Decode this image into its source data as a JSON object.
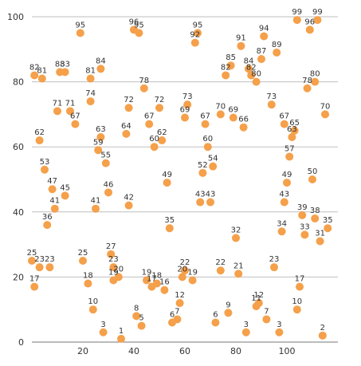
{
  "chart_data": {
    "type": "scatter",
    "title": "",
    "xlabel": "",
    "ylabel": "",
    "xlim": [
      0,
      120
    ],
    "ylim": [
      0,
      100
    ],
    "x_ticks": [
      20,
      40,
      60,
      80,
      100
    ],
    "y_ticks": [
      0,
      20,
      40,
      60,
      80,
      100
    ],
    "grid": {
      "horizontal": true,
      "vertical": false
    },
    "legend": "none",
    "marker_color": "#f5a04a",
    "points": [
      {
        "x": 1,
        "y": 17,
        "label": "17"
      },
      {
        "x": 0,
        "y": 25,
        "label": "25"
      },
      {
        "x": 3,
        "y": 23,
        "label": "23"
      },
      {
        "x": 7,
        "y": 23,
        "label": "23"
      },
      {
        "x": 1,
        "y": 82,
        "label": "82"
      },
      {
        "x": 4,
        "y": 81,
        "label": "81"
      },
      {
        "x": 3,
        "y": 62,
        "label": "62"
      },
      {
        "x": 5,
        "y": 53,
        "label": "53"
      },
      {
        "x": 8,
        "y": 47,
        "label": "47"
      },
      {
        "x": 9,
        "y": 41,
        "label": "41"
      },
      {
        "x": 6,
        "y": 36,
        "label": "36"
      },
      {
        "x": 13,
        "y": 45,
        "label": "45"
      },
      {
        "x": 10,
        "y": 71,
        "label": "71"
      },
      {
        "x": 11,
        "y": 83,
        "label": "83"
      },
      {
        "x": 13,
        "y": 83,
        "label": "83"
      },
      {
        "x": 15,
        "y": 71,
        "label": "71"
      },
      {
        "x": 17,
        "y": 67,
        "label": "67"
      },
      {
        "x": 19,
        "y": 95,
        "label": "95"
      },
      {
        "x": 20,
        "y": 25,
        "label": "25"
      },
      {
        "x": 22,
        "y": 18,
        "label": "18"
      },
      {
        "x": 23,
        "y": 81,
        "label": "81"
      },
      {
        "x": 23,
        "y": 74,
        "label": "74"
      },
      {
        "x": 24,
        "y": 10,
        "label": "10"
      },
      {
        "x": 26,
        "y": 59,
        "label": "59"
      },
      {
        "x": 27,
        "y": 84,
        "label": "84"
      },
      {
        "x": 27,
        "y": 63,
        "label": "63"
      },
      {
        "x": 25,
        "y": 41,
        "label": "41"
      },
      {
        "x": 28,
        "y": 3,
        "label": "3"
      },
      {
        "x": 29,
        "y": 55,
        "label": "55"
      },
      {
        "x": 30,
        "y": 46,
        "label": "46"
      },
      {
        "x": 31,
        "y": 27,
        "label": "27"
      },
      {
        "x": 32,
        "y": 19,
        "label": "19"
      },
      {
        "x": 32,
        "y": 23,
        "label": "23"
      },
      {
        "x": 34,
        "y": 20,
        "label": "20"
      },
      {
        "x": 35,
        "y": 1,
        "label": "1"
      },
      {
        "x": 37,
        "y": 64,
        "label": "64"
      },
      {
        "x": 38,
        "y": 72,
        "label": "72"
      },
      {
        "x": 38,
        "y": 42,
        "label": "42"
      },
      {
        "x": 40,
        "y": 96,
        "label": "96"
      },
      {
        "x": 42,
        "y": 95,
        "label": "95"
      },
      {
        "x": 41,
        "y": 8,
        "label": "8"
      },
      {
        "x": 43,
        "y": 5,
        "label": "5"
      },
      {
        "x": 44,
        "y": 78,
        "label": "78"
      },
      {
        "x": 45,
        "y": 19,
        "label": "19"
      },
      {
        "x": 46,
        "y": 67,
        "label": "67"
      },
      {
        "x": 47,
        "y": 17,
        "label": "17"
      },
      {
        "x": 48,
        "y": 60,
        "label": "60"
      },
      {
        "x": 49,
        "y": 18,
        "label": "18"
      },
      {
        "x": 50,
        "y": 72,
        "label": "72"
      },
      {
        "x": 51,
        "y": 62,
        "label": "62"
      },
      {
        "x": 52,
        "y": 16,
        "label": "16"
      },
      {
        "x": 53,
        "y": 49,
        "label": "49"
      },
      {
        "x": 54,
        "y": 35,
        "label": "35"
      },
      {
        "x": 55,
        "y": 6,
        "label": "6"
      },
      {
        "x": 57,
        "y": 7,
        "label": "7"
      },
      {
        "x": 58,
        "y": 12,
        "label": "12"
      },
      {
        "x": 59,
        "y": 20,
        "label": "20"
      },
      {
        "x": 60,
        "y": 22,
        "label": "22"
      },
      {
        "x": 60,
        "y": 69,
        "label": "69"
      },
      {
        "x": 61,
        "y": 73,
        "label": "73"
      },
      {
        "x": 63,
        "y": 19,
        "label": "19"
      },
      {
        "x": 64,
        "y": 92,
        "label": "92"
      },
      {
        "x": 65,
        "y": 95,
        "label": "95"
      },
      {
        "x": 66,
        "y": 43,
        "label": "43"
      },
      {
        "x": 67,
        "y": 52,
        "label": "52"
      },
      {
        "x": 68,
        "y": 67,
        "label": "67"
      },
      {
        "x": 69,
        "y": 60,
        "label": "60"
      },
      {
        "x": 70,
        "y": 43,
        "label": "43"
      },
      {
        "x": 71,
        "y": 54,
        "label": "54"
      },
      {
        "x": 72,
        "y": 6,
        "label": "6"
      },
      {
        "x": 74,
        "y": 70,
        "label": "70"
      },
      {
        "x": 74,
        "y": 22,
        "label": "22"
      },
      {
        "x": 76,
        "y": 82,
        "label": "82"
      },
      {
        "x": 77,
        "y": 9,
        "label": "9"
      },
      {
        "x": 78,
        "y": 85,
        "label": "85"
      },
      {
        "x": 79,
        "y": 69,
        "label": "69"
      },
      {
        "x": 80,
        "y": 32,
        "label": "32"
      },
      {
        "x": 81,
        "y": 21,
        "label": "21"
      },
      {
        "x": 82,
        "y": 91,
        "label": "91"
      },
      {
        "x": 83,
        "y": 66,
        "label": "66"
      },
      {
        "x": 84,
        "y": 3,
        "label": "3"
      },
      {
        "x": 85,
        "y": 84,
        "label": "84"
      },
      {
        "x": 86,
        "y": 82,
        "label": "82"
      },
      {
        "x": 88,
        "y": 11,
        "label": "11"
      },
      {
        "x": 88,
        "y": 80,
        "label": "80"
      },
      {
        "x": 89,
        "y": 12,
        "label": "12"
      },
      {
        "x": 90,
        "y": 87,
        "label": "87"
      },
      {
        "x": 91,
        "y": 94,
        "label": "94"
      },
      {
        "x": 92,
        "y": 7,
        "label": "7"
      },
      {
        "x": 94,
        "y": 73,
        "label": "73"
      },
      {
        "x": 95,
        "y": 23,
        "label": "23"
      },
      {
        "x": 96,
        "y": 89,
        "label": "89"
      },
      {
        "x": 97,
        "y": 3,
        "label": "3"
      },
      {
        "x": 98,
        "y": 34,
        "label": "34"
      },
      {
        "x": 99,
        "y": 43,
        "label": "43"
      },
      {
        "x": 99,
        "y": 67,
        "label": "67"
      },
      {
        "x": 100,
        "y": 49,
        "label": "49"
      },
      {
        "x": 101,
        "y": 57,
        "label": "57"
      },
      {
        "x": 102,
        "y": 63,
        "label": "63"
      },
      {
        "x": 103,
        "y": 65,
        "label": "65"
      },
      {
        "x": 104,
        "y": 99,
        "label": "99"
      },
      {
        "x": 104,
        "y": 10,
        "label": "10"
      },
      {
        "x": 105,
        "y": 17,
        "label": "17"
      },
      {
        "x": 106,
        "y": 39,
        "label": "39"
      },
      {
        "x": 107,
        "y": 33,
        "label": "33"
      },
      {
        "x": 108,
        "y": 78,
        "label": "78"
      },
      {
        "x": 109,
        "y": 96,
        "label": "96"
      },
      {
        "x": 110,
        "y": 50,
        "label": "50"
      },
      {
        "x": 111,
        "y": 38,
        "label": "38"
      },
      {
        "x": 111,
        "y": 80,
        "label": "80"
      },
      {
        "x": 112,
        "y": 99,
        "label": "99"
      },
      {
        "x": 113,
        "y": 31,
        "label": "31"
      },
      {
        "x": 114,
        "y": 2,
        "label": "2"
      },
      {
        "x": 115,
        "y": 70,
        "label": "70"
      },
      {
        "x": 116,
        "y": 35,
        "label": "35"
      }
    ]
  }
}
